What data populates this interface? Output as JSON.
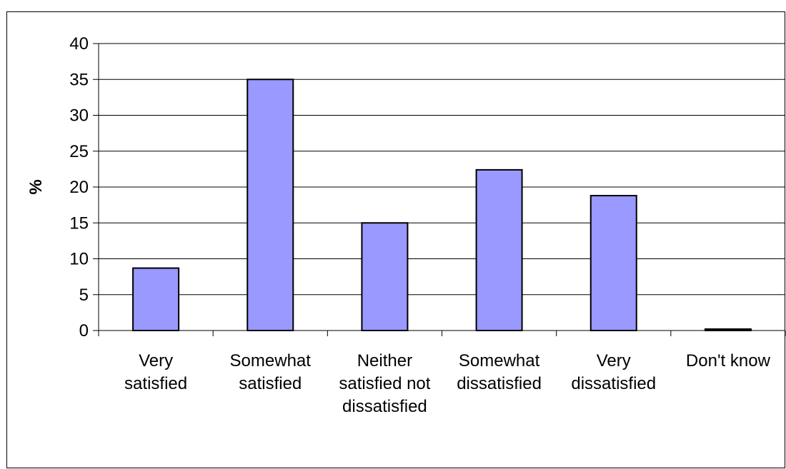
{
  "chart_data": {
    "type": "bar",
    "title": "",
    "xlabel": "",
    "ylabel": "%",
    "ylim": [
      0,
      40
    ],
    "yticks": [
      0,
      5,
      10,
      15,
      20,
      25,
      30,
      35,
      40
    ],
    "grid": true,
    "legend": "none",
    "bar_color": "#9999ff",
    "bar_edge_color": "#000000",
    "categories": [
      [
        "Very",
        "satisfied"
      ],
      [
        "Somewhat",
        "satisfied"
      ],
      [
        "Neither",
        "satisfied not",
        "dissatisfied"
      ],
      [
        "Somewhat",
        "dissatisfied"
      ],
      [
        "Very",
        "dissatisfied"
      ],
      [
        "Don't know"
      ]
    ],
    "values": [
      8.7,
      35.0,
      15.0,
      22.4,
      18.8,
      0.2
    ]
  }
}
